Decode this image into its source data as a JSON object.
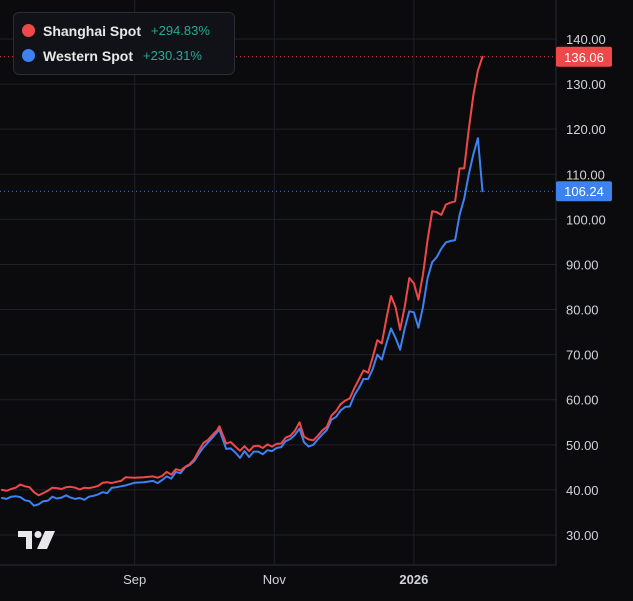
{
  "colors": {
    "background": "#0b0b0e",
    "grid": "#1f2129",
    "axis_text": "#d1d4dc",
    "shanghai": "#f04848",
    "western": "#3d82f0",
    "positive": "#22ab94"
  },
  "legend": {
    "items": [
      {
        "name": "Shanghai Spot",
        "change": "+294.83%",
        "color": "#f04848"
      },
      {
        "name": "Western Spot",
        "change": "+230.31%",
        "color": "#3d82f0"
      }
    ]
  },
  "price_labels": {
    "shanghai": "136.06",
    "western": "106.24"
  },
  "logo": {
    "icon": "tradingview-logo-icon"
  },
  "chart_data": {
    "type": "line",
    "y_axis_position": "right",
    "ylim": [
      25,
      146
    ],
    "y_ticks": [
      30,
      40,
      50,
      60,
      70,
      80,
      90,
      100,
      110,
      120,
      130,
      140
    ],
    "y_tick_labels": [
      "30.00",
      "40.00",
      "50.00",
      "60.00",
      "70.00",
      "80.00",
      "90.00",
      "100.00",
      "110.00",
      "120.00",
      "130.00",
      "140.00"
    ],
    "x_tick_labels": [
      "Sep",
      "Nov",
      "2026"
    ],
    "x_tick_dates": [
      "2025-09-01",
      "2025-11-01",
      "2026-01-01"
    ],
    "xlim": [
      "2025-07-05",
      "2026-02-26"
    ],
    "legend_position": "top-left",
    "grid": true,
    "series": [
      {
        "name": "Shanghai Spot",
        "color": "#f04848",
        "last_value": 136.06,
        "points": [
          [
            "2025-07-05",
            40.0
          ],
          [
            "2025-07-07",
            39.8
          ],
          [
            "2025-07-09",
            40.2
          ],
          [
            "2025-07-11",
            40.5
          ],
          [
            "2025-07-13",
            41.2
          ],
          [
            "2025-07-15",
            40.8
          ],
          [
            "2025-07-17",
            40.6
          ],
          [
            "2025-07-19",
            39.5
          ],
          [
            "2025-07-21",
            38.8
          ],
          [
            "2025-07-23",
            39.3
          ],
          [
            "2025-07-25",
            39.8
          ],
          [
            "2025-07-27",
            40.5
          ],
          [
            "2025-07-29",
            40.4
          ],
          [
            "2025-07-31",
            40.2
          ],
          [
            "2025-08-02",
            40.6
          ],
          [
            "2025-08-04",
            40.7
          ],
          [
            "2025-08-06",
            40.5
          ],
          [
            "2025-08-08",
            40.1
          ],
          [
            "2025-08-10",
            40.5
          ],
          [
            "2025-08-12",
            40.4
          ],
          [
            "2025-08-14",
            40.6
          ],
          [
            "2025-08-16",
            40.9
          ],
          [
            "2025-08-18",
            41.6
          ],
          [
            "2025-08-20",
            41.7
          ],
          [
            "2025-08-22",
            41.5
          ],
          [
            "2025-08-24",
            41.8
          ],
          [
            "2025-08-26",
            42.0
          ],
          [
            "2025-08-28",
            42.8
          ],
          [
            "2025-09-01",
            42.7
          ],
          [
            "2025-09-05",
            42.8
          ],
          [
            "2025-09-09",
            43.0
          ],
          [
            "2025-09-11",
            42.7
          ],
          [
            "2025-09-13",
            43.1
          ],
          [
            "2025-09-15",
            44.0
          ],
          [
            "2025-09-17",
            43.4
          ],
          [
            "2025-09-19",
            44.6
          ],
          [
            "2025-09-21",
            44.3
          ],
          [
            "2025-09-23",
            45.1
          ],
          [
            "2025-09-25",
            45.7
          ],
          [
            "2025-09-27",
            46.8
          ],
          [
            "2025-09-29",
            48.7
          ],
          [
            "2025-10-01",
            50.4
          ],
          [
            "2025-10-03",
            51.1
          ],
          [
            "2025-10-05",
            52.2
          ],
          [
            "2025-10-07",
            53.2
          ],
          [
            "2025-10-08",
            54.1
          ],
          [
            "2025-10-09",
            52.8
          ],
          [
            "2025-10-11",
            50.3
          ],
          [
            "2025-10-13",
            50.6
          ],
          [
            "2025-10-15",
            49.6
          ],
          [
            "2025-10-17",
            48.7
          ],
          [
            "2025-10-19",
            49.7
          ],
          [
            "2025-10-21",
            48.6
          ],
          [
            "2025-10-23",
            49.7
          ],
          [
            "2025-10-25",
            49.8
          ],
          [
            "2025-10-27",
            49.3
          ],
          [
            "2025-10-29",
            50.1
          ],
          [
            "2025-10-31",
            49.6
          ],
          [
            "2025-11-02",
            50.2
          ],
          [
            "2025-11-04",
            50.3
          ],
          [
            "2025-11-06",
            51.6
          ],
          [
            "2025-11-08",
            52.0
          ],
          [
            "2025-11-10",
            53.1
          ],
          [
            "2025-11-12",
            55.0
          ],
          [
            "2025-11-14",
            51.8
          ],
          [
            "2025-11-16",
            51.2
          ],
          [
            "2025-11-18",
            51.0
          ],
          [
            "2025-11-20",
            52.0
          ],
          [
            "2025-11-22",
            53.2
          ],
          [
            "2025-11-24",
            54.0
          ],
          [
            "2025-11-26",
            56.5
          ],
          [
            "2025-11-28",
            57.5
          ],
          [
            "2025-11-30",
            59.0
          ],
          [
            "2025-12-02",
            59.8
          ],
          [
            "2025-12-04",
            60.3
          ],
          [
            "2025-12-06",
            62.6
          ],
          [
            "2025-12-08",
            64.5
          ],
          [
            "2025-12-10",
            66.5
          ],
          [
            "2025-12-12",
            66.0
          ],
          [
            "2025-12-14",
            69.4
          ],
          [
            "2025-12-16",
            73.2
          ],
          [
            "2025-12-18",
            72.5
          ],
          [
            "2025-12-20",
            78.0
          ],
          [
            "2025-12-22",
            83.0
          ],
          [
            "2025-12-24",
            80.5
          ],
          [
            "2025-12-26",
            75.5
          ],
          [
            "2025-12-28",
            80.6
          ],
          [
            "2025-12-30",
            87.0
          ],
          [
            "2026-01-01",
            85.8
          ],
          [
            "2026-01-03",
            82.2
          ],
          [
            "2026-01-05",
            87.8
          ],
          [
            "2026-01-07",
            95.5
          ],
          [
            "2026-01-09",
            101.8
          ],
          [
            "2026-01-11",
            101.6
          ],
          [
            "2026-01-13",
            101.0
          ],
          [
            "2026-01-15",
            103.3
          ],
          [
            "2026-01-17",
            103.7
          ],
          [
            "2026-01-19",
            104.0
          ],
          [
            "2026-01-21",
            111.3
          ],
          [
            "2026-01-23",
            111.3
          ],
          [
            "2026-01-25",
            120.0
          ],
          [
            "2026-01-27",
            127.6
          ],
          [
            "2026-01-29",
            133.0
          ],
          [
            "2026-01-31",
            136.06
          ]
        ]
      },
      {
        "name": "Western Spot",
        "color": "#3d82f0",
        "last_value": 106.24,
        "points": [
          [
            "2025-07-05",
            38.2
          ],
          [
            "2025-07-07",
            38.0
          ],
          [
            "2025-07-09",
            38.5
          ],
          [
            "2025-07-11",
            38.6
          ],
          [
            "2025-07-13",
            38.4
          ],
          [
            "2025-07-15",
            37.7
          ],
          [
            "2025-07-17",
            37.5
          ],
          [
            "2025-07-19",
            36.5
          ],
          [
            "2025-07-21",
            36.8
          ],
          [
            "2025-07-23",
            37.5
          ],
          [
            "2025-07-25",
            37.6
          ],
          [
            "2025-07-27",
            38.5
          ],
          [
            "2025-07-29",
            38.1
          ],
          [
            "2025-07-31",
            38.3
          ],
          [
            "2025-08-02",
            38.8
          ],
          [
            "2025-08-04",
            38.3
          ],
          [
            "2025-08-06",
            38.0
          ],
          [
            "2025-08-08",
            38.2
          ],
          [
            "2025-08-10",
            37.8
          ],
          [
            "2025-08-12",
            38.5
          ],
          [
            "2025-08-14",
            38.7
          ],
          [
            "2025-08-16",
            39.0
          ],
          [
            "2025-08-18",
            39.5
          ],
          [
            "2025-08-20",
            39.3
          ],
          [
            "2025-08-22",
            40.5
          ],
          [
            "2025-08-24",
            40.6
          ],
          [
            "2025-08-26",
            40.8
          ],
          [
            "2025-08-28",
            41.0
          ],
          [
            "2025-09-01",
            41.6
          ],
          [
            "2025-09-05",
            41.7
          ],
          [
            "2025-09-09",
            42.0
          ],
          [
            "2025-09-11",
            41.5
          ],
          [
            "2025-09-13",
            42.2
          ],
          [
            "2025-09-15",
            43.0
          ],
          [
            "2025-09-17",
            42.5
          ],
          [
            "2025-09-19",
            44.0
          ],
          [
            "2025-09-21",
            43.7
          ],
          [
            "2025-09-23",
            45.0
          ],
          [
            "2025-09-25",
            45.5
          ],
          [
            "2025-09-27",
            46.4
          ],
          [
            "2025-09-29",
            48.0
          ],
          [
            "2025-10-01",
            49.4
          ],
          [
            "2025-10-03",
            50.5
          ],
          [
            "2025-10-05",
            51.6
          ],
          [
            "2025-10-07",
            52.8
          ],
          [
            "2025-10-08",
            53.4
          ],
          [
            "2025-10-09",
            51.9
          ],
          [
            "2025-10-11",
            49.1
          ],
          [
            "2025-10-13",
            49.2
          ],
          [
            "2025-10-15",
            48.3
          ],
          [
            "2025-10-17",
            47.1
          ],
          [
            "2025-10-19",
            48.6
          ],
          [
            "2025-10-21",
            47.3
          ],
          [
            "2025-10-23",
            48.5
          ],
          [
            "2025-10-25",
            48.5
          ],
          [
            "2025-10-27",
            47.9
          ],
          [
            "2025-10-29",
            48.8
          ],
          [
            "2025-10-31",
            48.6
          ],
          [
            "2025-11-02",
            49.3
          ],
          [
            "2025-11-04",
            49.5
          ],
          [
            "2025-11-06",
            50.8
          ],
          [
            "2025-11-08",
            51.3
          ],
          [
            "2025-11-10",
            52.2
          ],
          [
            "2025-11-12",
            53.6
          ],
          [
            "2025-11-14",
            50.6
          ],
          [
            "2025-11-16",
            49.6
          ],
          [
            "2025-11-18",
            50.0
          ],
          [
            "2025-11-20",
            51.2
          ],
          [
            "2025-11-22",
            52.3
          ],
          [
            "2025-11-24",
            53.3
          ],
          [
            "2025-11-26",
            55.6
          ],
          [
            "2025-11-28",
            56.2
          ],
          [
            "2025-11-30",
            57.6
          ],
          [
            "2025-12-02",
            58.4
          ],
          [
            "2025-12-04",
            58.5
          ],
          [
            "2025-12-06",
            61.0
          ],
          [
            "2025-12-08",
            62.6
          ],
          [
            "2025-12-10",
            64.6
          ],
          [
            "2025-12-12",
            64.6
          ],
          [
            "2025-12-14",
            66.8
          ],
          [
            "2025-12-16",
            70.0
          ],
          [
            "2025-12-18",
            68.9
          ],
          [
            "2025-12-20",
            72.5
          ],
          [
            "2025-12-22",
            75.8
          ],
          [
            "2025-12-24",
            73.7
          ],
          [
            "2025-12-26",
            71.1
          ],
          [
            "2025-12-28",
            75.8
          ],
          [
            "2025-12-30",
            79.6
          ],
          [
            "2026-01-01",
            79.4
          ],
          [
            "2026-01-03",
            76.0
          ],
          [
            "2026-01-05",
            80.6
          ],
          [
            "2026-01-07",
            87.0
          ],
          [
            "2026-01-09",
            90.5
          ],
          [
            "2026-01-11",
            91.6
          ],
          [
            "2026-01-13",
            93.5
          ],
          [
            "2026-01-15",
            94.9
          ],
          [
            "2026-01-17",
            95.2
          ],
          [
            "2026-01-19",
            95.4
          ],
          [
            "2026-01-21",
            101.0
          ],
          [
            "2026-01-23",
            104.6
          ],
          [
            "2026-01-25",
            110.0
          ],
          [
            "2026-01-27",
            114.5
          ],
          [
            "2026-01-29",
            118.0
          ],
          [
            "2026-01-31",
            106.24
          ]
        ]
      }
    ]
  }
}
